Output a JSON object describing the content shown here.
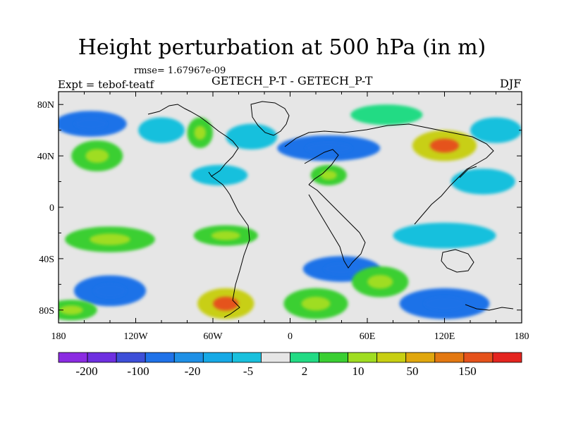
{
  "chart_data": {
    "type": "heatmap",
    "title": "Height perturbation at 500 hPa (in m)",
    "rmse_label": "rmse= 1.67967e-09",
    "experiment_label": "Expt = tebof-teatf",
    "subtitle": "GETECH_P-T - GETECH_P-T",
    "season": "DJF",
    "field": "500 hPa height perturbation (m)",
    "x_axis": {
      "range": [
        -180,
        180
      ],
      "ticks": [
        -180,
        -120,
        -60,
        0,
        60,
        120,
        180
      ],
      "tick_labels": [
        "180",
        "120W",
        "60W",
        "0",
        "60E",
        "120E",
        "180"
      ]
    },
    "y_axis": {
      "range": [
        -90,
        90
      ],
      "ticks": [
        80,
        40,
        0,
        -40,
        -80
      ],
      "tick_labels": [
        "80N",
        "40N",
        "0",
        "40S",
        "80S"
      ]
    },
    "colorbar": {
      "colors": [
        "#8b2be2",
        "#6e2fe0",
        "#3d4fd8",
        "#1f72e8",
        "#1e90e6",
        "#16a9e6",
        "#19c0dd",
        "#e6e6e6",
        "#22db84",
        "#3acf32",
        "#9fdd21",
        "#c8cf12",
        "#e0a70e",
        "#e37811",
        "#e5521b",
        "#e4241f"
      ],
      "labels": [
        "-200",
        "-100",
        "-20",
        "-5",
        "2",
        "10",
        "50",
        "150"
      ]
    },
    "anomalies": [
      {
        "lon": -155,
        "lat": 65,
        "value": -20,
        "rx": 28,
        "ry": 10
      },
      {
        "lon": -150,
        "lat": 40,
        "value": 10,
        "rx": 20,
        "ry": 12
      },
      {
        "lon": -100,
        "lat": 60,
        "value": -3,
        "rx": 18,
        "ry": 10
      },
      {
        "lon": -70,
        "lat": 58,
        "value": 10,
        "rx": 10,
        "ry": 12
      },
      {
        "lon": -30,
        "lat": 55,
        "value": -5,
        "rx": 20,
        "ry": 10
      },
      {
        "lon": 30,
        "lat": 46,
        "value": -20,
        "rx": 40,
        "ry": 10
      },
      {
        "lon": 75,
        "lat": 72,
        "value": 5,
        "rx": 28,
        "ry": 8
      },
      {
        "lon": 120,
        "lat": 48,
        "value": 50,
        "rx": 25,
        "ry": 12
      },
      {
        "lon": 160,
        "lat": 60,
        "value": -5,
        "rx": 20,
        "ry": 10
      },
      {
        "lon": 30,
        "lat": 25,
        "value": 10,
        "rx": 14,
        "ry": 8
      },
      {
        "lon": -55,
        "lat": 25,
        "value": -5,
        "rx": 22,
        "ry": 8
      },
      {
        "lon": 150,
        "lat": 20,
        "value": -5,
        "rx": 25,
        "ry": 10
      },
      {
        "lon": -140,
        "lat": -25,
        "value": 10,
        "rx": 35,
        "ry": 10
      },
      {
        "lon": -50,
        "lat": -22,
        "value": 10,
        "rx": 25,
        "ry": 8
      },
      {
        "lon": 120,
        "lat": -22,
        "value": -5,
        "rx": 40,
        "ry": 10
      },
      {
        "lon": 40,
        "lat": -48,
        "value": -20,
        "rx": 30,
        "ry": 10
      },
      {
        "lon": 70,
        "lat": -58,
        "value": 10,
        "rx": 22,
        "ry": 12
      },
      {
        "lon": -140,
        "lat": -65,
        "value": -20,
        "rx": 28,
        "ry": 12
      },
      {
        "lon": -50,
        "lat": -75,
        "value": 50,
        "rx": 22,
        "ry": 12
      },
      {
        "lon": 20,
        "lat": -75,
        "value": 10,
        "rx": 25,
        "ry": 12
      },
      {
        "lon": 120,
        "lat": -75,
        "value": -20,
        "rx": 35,
        "ry": 12
      },
      {
        "lon": -170,
        "lat": -80,
        "value": 10,
        "rx": 20,
        "ry": 8
      }
    ]
  }
}
